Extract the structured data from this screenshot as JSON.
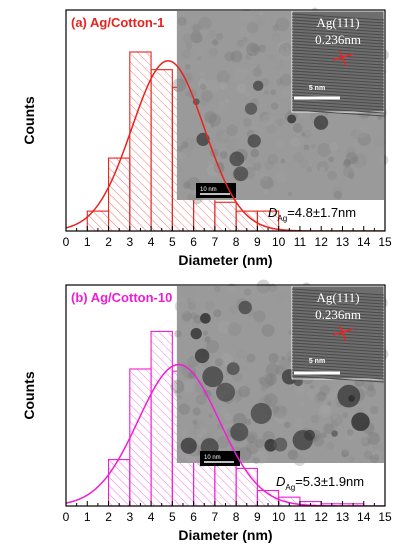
{
  "chart_data": [
    {
      "type": "bar",
      "title": "(a) Ag/Cotton-1",
      "xlabel": "Diameter (nm)",
      "ylabel": "Counts",
      "xlim": [
        0,
        15
      ],
      "xticks": [
        "0",
        "1",
        "2",
        "3",
        "4",
        "5",
        "6",
        "7",
        "8",
        "9",
        "10",
        "11",
        "12",
        "13",
        "14",
        "15"
      ],
      "ylim": [
        0,
        1
      ],
      "bin_width": 1,
      "bin_left_edges": [
        1,
        2,
        3,
        4,
        5,
        6,
        7,
        8,
        9
      ],
      "values": [
        0.09,
        0.33,
        0.81,
        0.73,
        0.65,
        0.33,
        0.13,
        0.09,
        0.09
      ],
      "fit": {
        "type": "gaussian",
        "mean": 4.8,
        "sd": 1.7,
        "peak": 0.77
      },
      "color": "#e8231e",
      "annotation": {
        "prefix": "D",
        "sub": "Ag",
        "text": "=4.8±1.7nm"
      },
      "inset": {
        "lattice_label": "Ag(111)",
        "d_spacing": "0.236nm",
        "scale_large": "5 nm",
        "scale_small": "10 nm"
      }
    },
    {
      "type": "bar",
      "title": "(b) Ag/Cotton-10",
      "xlabel": "Diameter (nm)",
      "ylabel": "Counts",
      "xlim": [
        0,
        15
      ],
      "xticks": [
        "0",
        "1",
        "2",
        "3",
        "4",
        "5",
        "6",
        "7",
        "8",
        "9",
        "10",
        "11",
        "12",
        "13",
        "14",
        "15"
      ],
      "ylim": [
        0,
        1
      ],
      "bin_width": 1,
      "bin_left_edges": [
        2,
        3,
        4,
        5,
        6,
        7,
        8,
        9,
        10,
        11,
        12,
        13
      ],
      "values": [
        0.21,
        0.62,
        0.79,
        0.61,
        0.4,
        0.21,
        0.17,
        0.07,
        0.04,
        0.02,
        0.01,
        0.01
      ],
      "fit": {
        "type": "gaussian",
        "mean": 5.3,
        "sd": 1.9,
        "peak": 0.64
      },
      "color": "#ee1fd3",
      "annotation": {
        "prefix": "D",
        "sub": "Ag",
        "text": "=5.3±1.9nm"
      },
      "inset": {
        "lattice_label": "Ag(111)",
        "d_spacing": "0.236nm",
        "scale_large": "5 nm",
        "scale_small": "10 nm"
      }
    }
  ]
}
